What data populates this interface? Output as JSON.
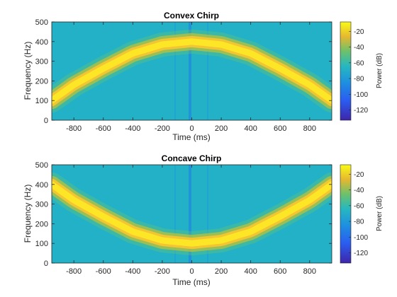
{
  "colors": {
    "low": "#3e26a8",
    "mid_blue": "#1e8fe0",
    "teal": "#26b8c0",
    "cyan_bg": "#25b5c4",
    "yellow": "#fde626",
    "high": "#f9fb15"
  },
  "chart_data": [
    {
      "type": "heatmap",
      "title": "Convex Chirp",
      "xlabel": "Time (ms)",
      "ylabel": "Frequency (Hz)",
      "xlim": [
        -950,
        950
      ],
      "ylim": [
        0,
        500
      ],
      "xticks": [
        -800,
        -600,
        -400,
        -200,
        0,
        200,
        400,
        600,
        800
      ],
      "yticks": [
        0,
        100,
        200,
        300,
        400,
        500
      ],
      "ridge": {
        "shape": "convex",
        "t_ms": [
          -950,
          -800,
          -600,
          -400,
          -200,
          0,
          200,
          400,
          600,
          800,
          950
        ],
        "f_hz": [
          100,
          180,
          263,
          340,
          385,
          400,
          385,
          340,
          263,
          180,
          100
        ]
      },
      "colorbar": {
        "label": "Power (dB)",
        "range": [
          -133,
          -8
        ],
        "ticks": [
          -20,
          -40,
          -60,
          -80,
          -100,
          -120
        ]
      }
    },
    {
      "type": "heatmap",
      "title": "Concave Chirp",
      "xlabel": "Time (ms)",
      "ylabel": "Frequency (Hz)",
      "xlim": [
        -950,
        950
      ],
      "ylim": [
        0,
        500
      ],
      "xticks": [
        -800,
        -600,
        -400,
        -200,
        0,
        200,
        400,
        600,
        800
      ],
      "yticks": [
        0,
        100,
        200,
        300,
        400,
        500
      ],
      "ridge": {
        "shape": "concave",
        "t_ms": [
          -950,
          -800,
          -600,
          -400,
          -200,
          0,
          200,
          400,
          600,
          800,
          950
        ],
        "f_hz": [
          400,
          320,
          237,
          160,
          115,
          100,
          115,
          160,
          237,
          320,
          400
        ]
      },
      "colorbar": {
        "label": "Power (dB)",
        "range": [
          -133,
          -8
        ],
        "ticks": [
          -20,
          -40,
          -60,
          -80,
          -100,
          -120
        ]
      }
    }
  ]
}
